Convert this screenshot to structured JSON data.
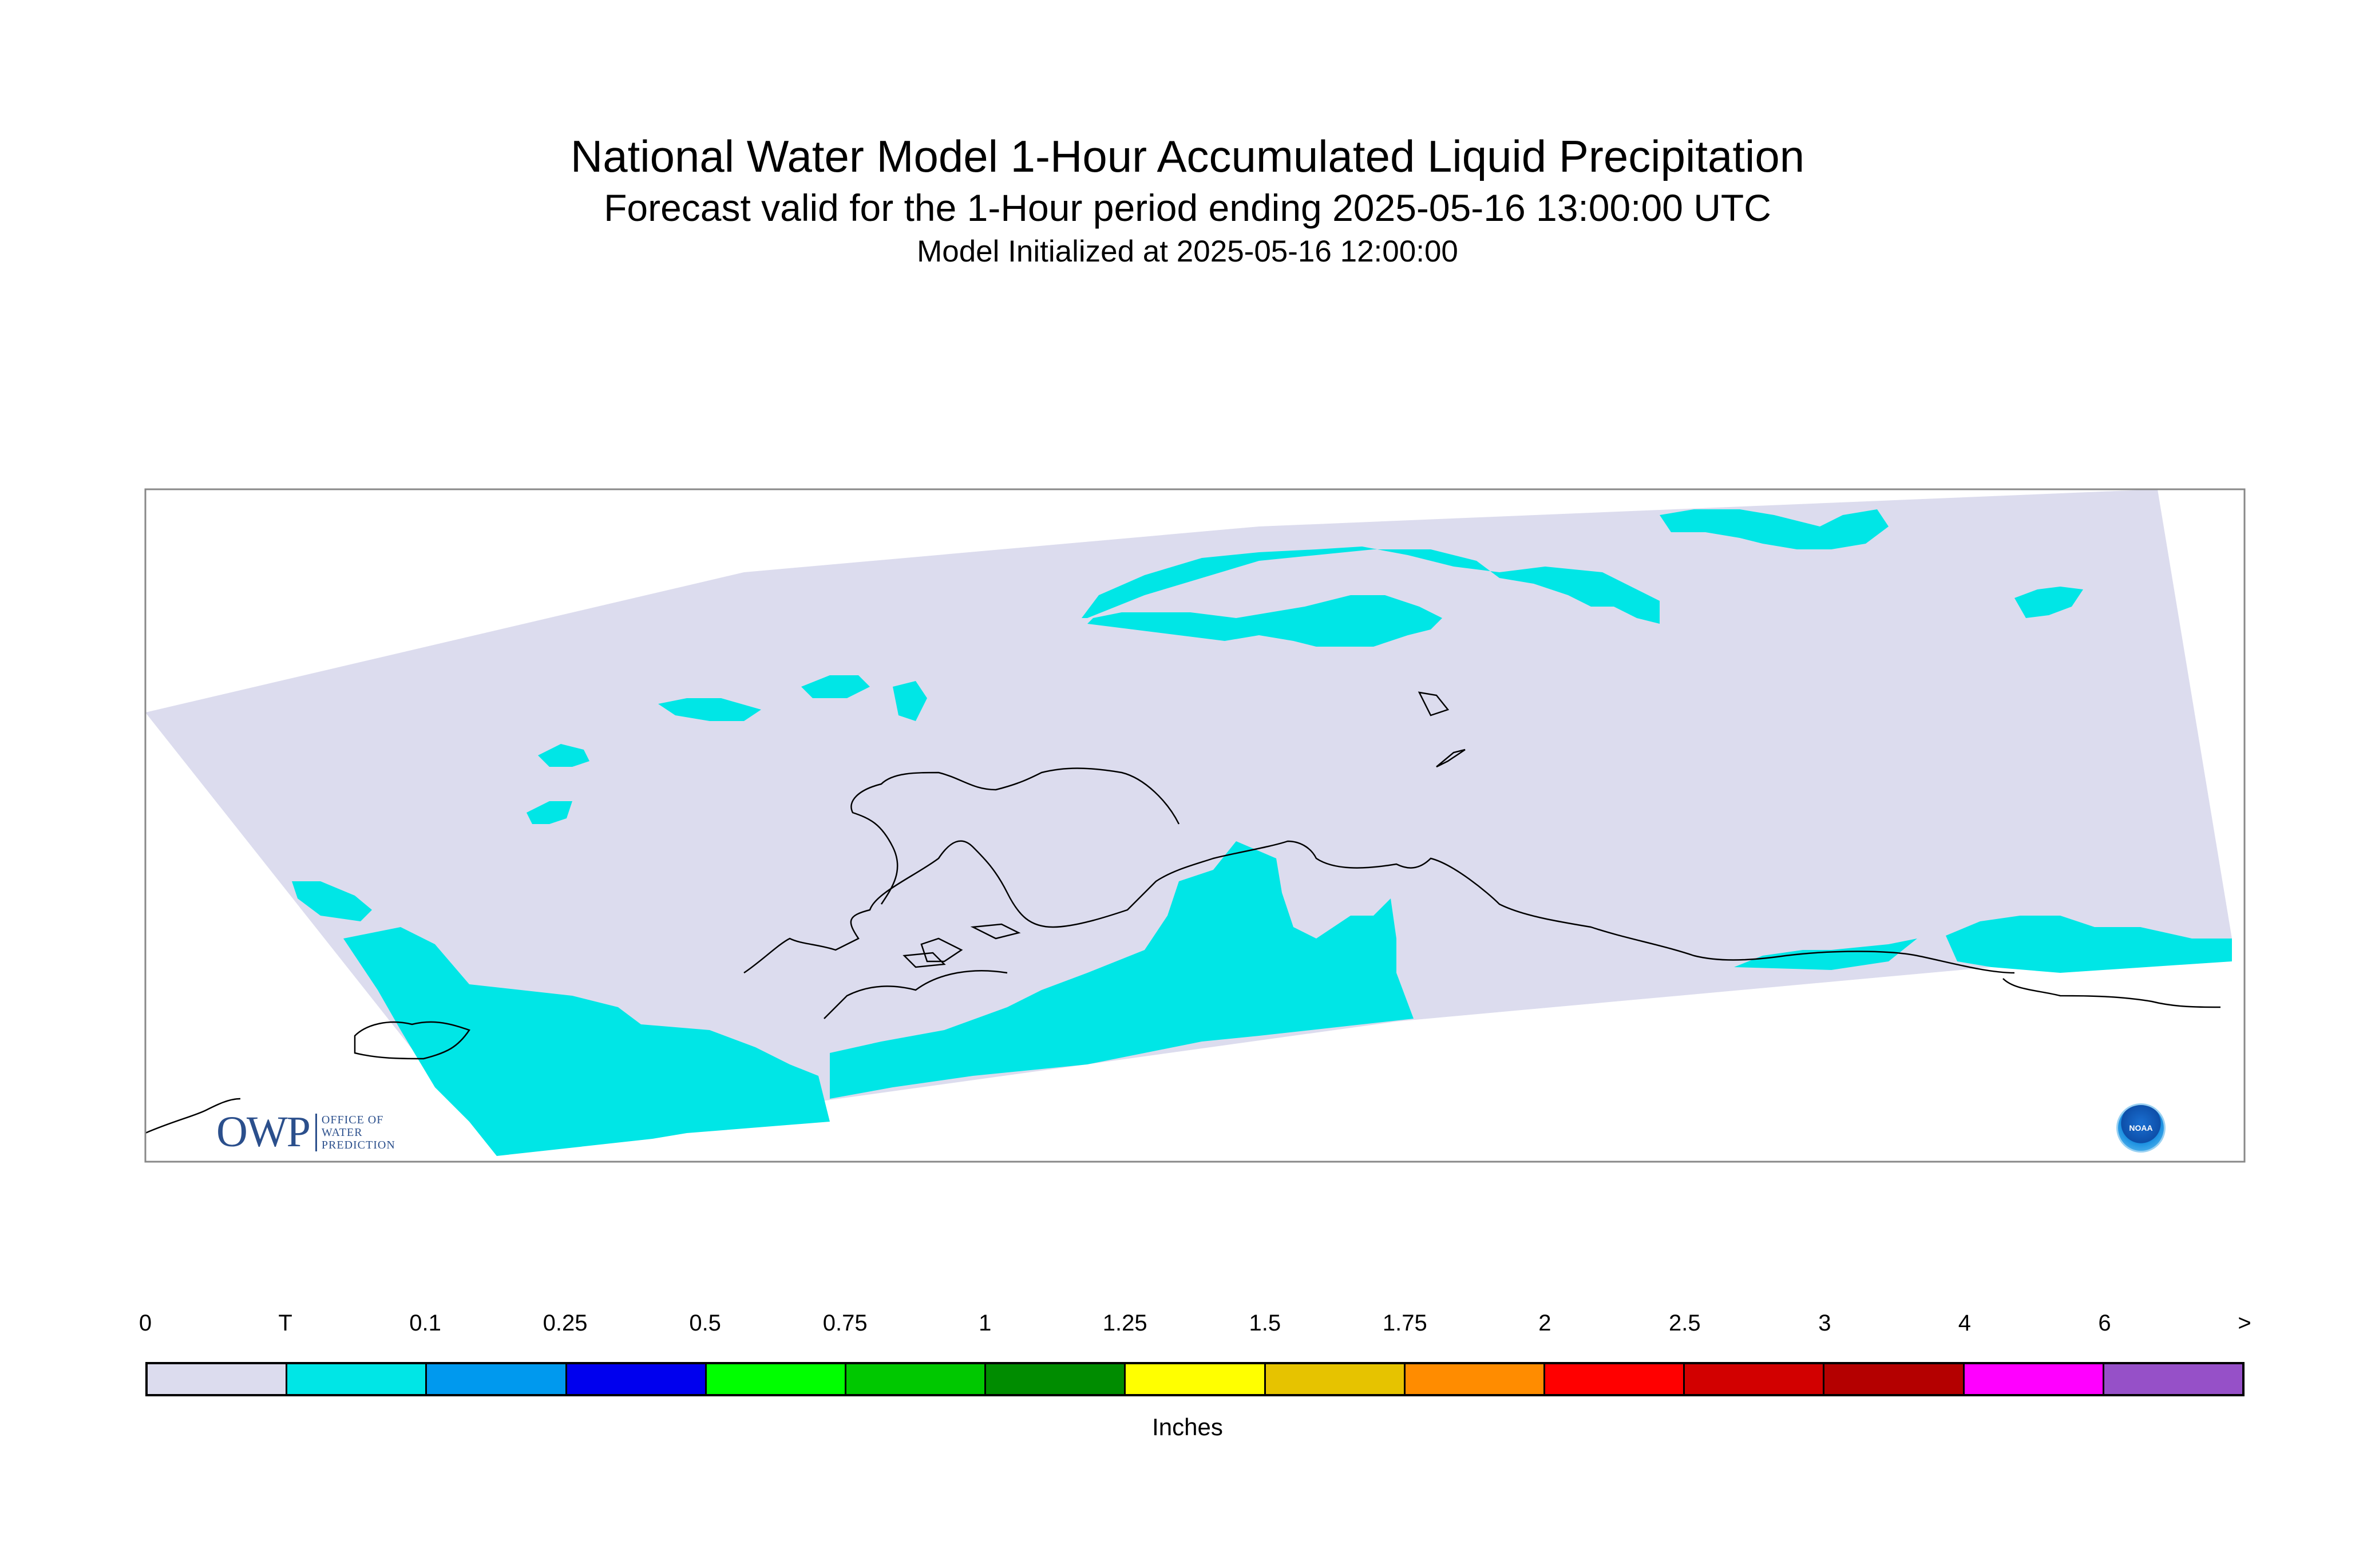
{
  "header": {
    "title": "National Water Model 1-Hour Accumulated Liquid Precipitation",
    "subtitle": "Forecast valid for the 1-Hour period ending 2025-05-16 13:00:00 UTC",
    "init": "Model Initialized at 2025-05-16 12:00:00"
  },
  "map": {
    "domain_fill_color": "#dcdcee",
    "precip_color": "#00e6e6",
    "coastline_color": "#000000"
  },
  "legend": {
    "ticks": [
      "0",
      "T",
      "0.1",
      "0.25",
      "0.5",
      "0.75",
      "1",
      "1.25",
      "1.5",
      "1.75",
      "2",
      "2.5",
      "3",
      "4",
      "6",
      ">"
    ],
    "colors": [
      "#dcdcee",
      "#00e6e6",
      "#0099ee",
      "#0000ee",
      "#00ff00",
      "#00c800",
      "#008c00",
      "#ffff00",
      "#e6c300",
      "#ff8c00",
      "#ff0000",
      "#d20000",
      "#b40000",
      "#ff00ff",
      "#9650c8"
    ],
    "units": "Inches"
  },
  "logos": {
    "owp_mark": "OWP",
    "owp_line1": "OFFICE OF",
    "owp_line2": "WATER",
    "owp_line3": "PREDICTION",
    "noaa_text": "NOAA",
    "owp_icon": "owp-logo",
    "noaa_icon": "noaa-logo"
  }
}
